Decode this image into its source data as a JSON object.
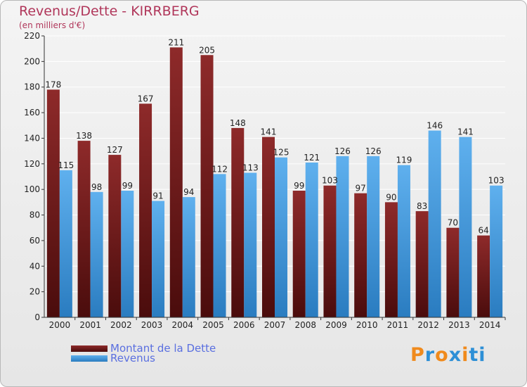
{
  "header": {
    "title": "Revenus/Dette - KIRRBERG",
    "subtitle": "(en milliers d'€)"
  },
  "logo": {
    "text": "Proxiti",
    "letters": [
      "P",
      "r",
      "o",
      "x",
      "i",
      "t",
      "i"
    ],
    "colors": [
      "#f08a1c",
      "#2d8fd6",
      "#f08a1c",
      "#2d8fd6",
      "#f08a1c",
      "#2d8fd6",
      "#2d8fd6"
    ]
  },
  "legend": [
    {
      "label": "Montant de la Dette",
      "color": "#7a1b1b"
    },
    {
      "label": "Revenus",
      "color": "#3b9ae0"
    }
  ],
  "chart_data": {
    "type": "bar",
    "title": "Revenus/Dette - KIRRBERG",
    "ylabel": "(en milliers d'€)",
    "ylim": [
      0,
      220
    ],
    "yticks": [
      0,
      20,
      40,
      60,
      80,
      100,
      120,
      140,
      160,
      180,
      200,
      220
    ],
    "categories": [
      "2000",
      "2001",
      "2002",
      "2003",
      "2004",
      "2005",
      "2006",
      "2007",
      "2008",
      "2009",
      "2010",
      "2011",
      "2012",
      "2013",
      "2014"
    ],
    "series": [
      {
        "name": "Montant de la Dette",
        "color": "#7a1b1b",
        "values": [
          178,
          138,
          127,
          167,
          211,
          205,
          148,
          141,
          99,
          103,
          97,
          90,
          83,
          70,
          64
        ]
      },
      {
        "name": "Revenus",
        "color": "#3b9ae0",
        "values": [
          115,
          98,
          99,
          91,
          94,
          112,
          113,
          125,
          121,
          126,
          126,
          119,
          146,
          141,
          103
        ]
      }
    ],
    "grid": true,
    "legend_position": "bottom-left"
  }
}
